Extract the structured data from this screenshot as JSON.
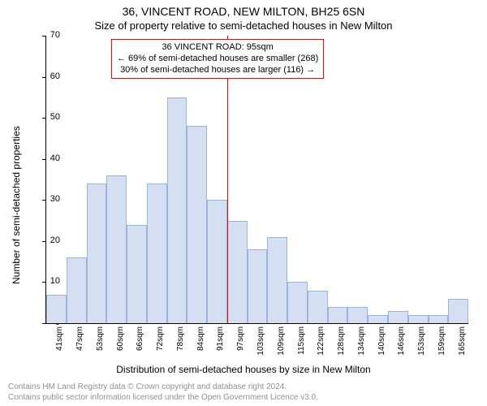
{
  "address": "36, VINCENT ROAD, NEW MILTON, BH25 6SN",
  "subtitle": "Size of property relative to semi-detached houses in New Milton",
  "y_axis_label": "Number of semi-detached properties",
  "x_axis_label": "Distribution of semi-detached houses by size in New Milton",
  "footer_line1": "Contains HM Land Registry data © Crown copyright and database right 2024.",
  "footer_line2": "Contains public sector information licensed under the Open Government Licence v3.0.",
  "chart": {
    "type": "histogram",
    "ylim": [
      0,
      70
    ],
    "ytick_step": 10,
    "yticks": [
      0,
      10,
      20,
      30,
      40,
      50,
      60,
      70
    ],
    "x_labels": [
      "41sqm",
      "47sqm",
      "53sqm",
      "60sqm",
      "66sqm",
      "72sqm",
      "78sqm",
      "84sqm",
      "91sqm",
      "97sqm",
      "103sqm",
      "109sqm",
      "115sqm",
      "122sqm",
      "128sqm",
      "134sqm",
      "140sqm",
      "146sqm",
      "153sqm",
      "159sqm",
      "165sqm"
    ],
    "values": [
      7,
      16,
      34,
      36,
      24,
      34,
      55,
      48,
      30,
      25,
      18,
      21,
      10,
      8,
      4,
      4,
      2,
      3,
      2,
      2,
      6
    ],
    "bar_fill": "#d4e0f1",
    "bar_stroke": "#9bb4d8",
    "background": "#ffffff",
    "marker_index": 9,
    "marker_color": "#ff0000",
    "title_fontsize": 14,
    "subtitle_fontsize": 13,
    "label_fontsize": 12,
    "tick_fontsize": 11
  },
  "info_box": {
    "line1": "36 VINCENT ROAD: 95sqm",
    "line2": "← 69% of semi-detached houses are smaller (268)",
    "line3": "30% of semi-detached houses are larger (116) →",
    "border_color": "#ff0000"
  }
}
